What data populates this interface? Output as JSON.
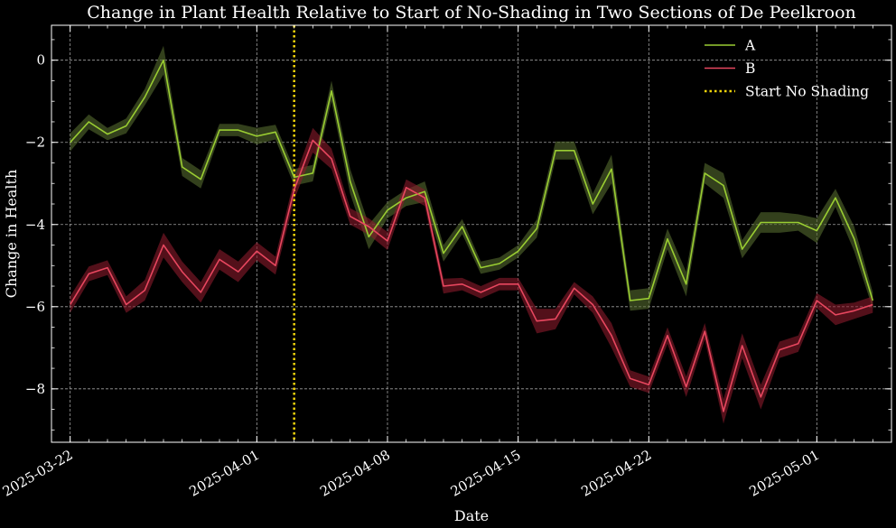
{
  "chart_data": {
    "type": "line",
    "title": "Change in Plant Health Relative to Start of No-Shading in Two Sections of De Peelkroon",
    "xlabel": "Date",
    "ylabel": "Change in Health",
    "x_tick_labels": [
      "2025-03-22",
      "2025-04-01",
      "2025-04-08",
      "2025-04-15",
      "2025-04-22",
      "2025-05-01"
    ],
    "x_ticks": [
      "2025-03-22",
      "2025-04-01",
      "2025-04-08",
      "2025-04-15",
      "2025-04-22",
      "2025-05-01"
    ],
    "y_ticks": [
      0,
      -2,
      -4,
      -6,
      -8
    ],
    "y_tick_labels": [
      "0",
      "−2",
      "−4",
      "−6",
      "−8"
    ],
    "xlim": [
      "2025-03-21",
      "2025-05-05"
    ],
    "ylim": [
      -9.3,
      0.85
    ],
    "grid": true,
    "legend_position": "top-right",
    "x": [
      "2025-03-22",
      "2025-03-23",
      "2025-03-24",
      "2025-03-25",
      "2025-03-26",
      "2025-03-27",
      "2025-03-28",
      "2025-03-29",
      "2025-03-30",
      "2025-03-31",
      "2025-04-01",
      "2025-04-02",
      "2025-04-03",
      "2025-04-04",
      "2025-04-05",
      "2025-04-06",
      "2025-04-07",
      "2025-04-08",
      "2025-04-09",
      "2025-04-10",
      "2025-04-11",
      "2025-04-12",
      "2025-04-13",
      "2025-04-14",
      "2025-04-15",
      "2025-04-16",
      "2025-04-17",
      "2025-04-18",
      "2025-04-19",
      "2025-04-20",
      "2025-04-21",
      "2025-04-22",
      "2025-04-23",
      "2025-04-24",
      "2025-04-25",
      "2025-04-26",
      "2025-04-27",
      "2025-04-28",
      "2025-04-29",
      "2025-04-30",
      "2025-05-01",
      "2025-05-02",
      "2025-05-03",
      "2025-05-04"
    ],
    "series": [
      {
        "name": "A",
        "color": "#9acd32",
        "band_color": "#556b2f",
        "values": [
          -2.0,
          -1.5,
          -1.8,
          -1.6,
          -0.9,
          0.0,
          -2.6,
          -2.9,
          -1.7,
          -1.7,
          -1.85,
          -1.75,
          -2.85,
          -2.75,
          -0.75,
          -2.95,
          -4.3,
          -3.65,
          -3.35,
          -3.2,
          -4.7,
          -4.05,
          -5.05,
          -4.95,
          -4.65,
          -4.1,
          -2.2,
          -2.2,
          -3.5,
          -2.65,
          -5.85,
          -5.8,
          -4.35,
          -5.45,
          -2.75,
          -3.05,
          -4.6,
          -3.95,
          -3.95,
          -3.95,
          -4.15,
          -3.35,
          -4.35,
          -5.85
        ],
        "band": [
          0.22,
          0.18,
          0.15,
          0.18,
          0.2,
          0.35,
          0.22,
          0.22,
          0.15,
          0.15,
          0.2,
          0.18,
          0.2,
          0.2,
          0.25,
          0.3,
          0.3,
          0.2,
          0.2,
          0.25,
          0.2,
          0.18,
          0.15,
          0.15,
          0.15,
          0.22,
          0.22,
          0.22,
          0.25,
          0.35,
          0.25,
          0.25,
          0.25,
          0.3,
          0.25,
          0.3,
          0.22,
          0.25,
          0.25,
          0.2,
          0.3,
          0.22,
          0.3,
          0.2
        ]
      },
      {
        "name": "B",
        "color": "#e8475f",
        "band_color": "#8b1a2b",
        "values": [
          -5.95,
          -5.2,
          -5.05,
          -5.95,
          -5.6,
          -4.5,
          -5.15,
          -5.65,
          -4.85,
          -5.15,
          -4.65,
          -5.0,
          -3.15,
          -1.95,
          -2.4,
          -3.8,
          -4.05,
          -4.4,
          -3.1,
          -3.35,
          -5.5,
          -5.45,
          -5.65,
          -5.45,
          -5.45,
          -6.35,
          -6.3,
          -5.55,
          -5.95,
          -6.7,
          -7.75,
          -7.9,
          -6.7,
          -7.95,
          -6.6,
          -8.55,
          -6.95,
          -8.2,
          -7.05,
          -6.9,
          -5.85,
          -6.2,
          -6.1,
          -5.95
        ]
      }
    ],
    "series_b_band": [
      0.2,
      0.18,
      0.18,
      0.2,
      0.25,
      0.3,
      0.25,
      0.25,
      0.25,
      0.25,
      0.22,
      0.22,
      0.25,
      0.3,
      0.25,
      0.2,
      0.2,
      0.22,
      0.2,
      0.2,
      0.18,
      0.15,
      0.15,
      0.15,
      0.15,
      0.3,
      0.25,
      0.15,
      0.2,
      0.3,
      0.2,
      0.2,
      0.2,
      0.25,
      0.2,
      0.3,
      0.3,
      0.3,
      0.2,
      0.2,
      0.18,
      0.25,
      0.2,
      0.2
    ],
    "annotations": [
      {
        "type": "vline",
        "x": "2025-04-03",
        "label": "Start No Shading",
        "color": "#f5d60a",
        "style": "dotted"
      }
    ],
    "legend": [
      "A",
      "B",
      "Start No Shading"
    ]
  }
}
